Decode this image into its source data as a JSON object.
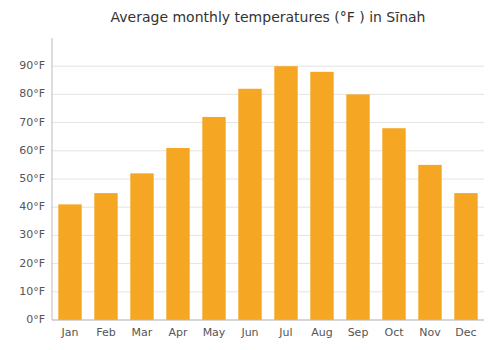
{
  "chart_data": {
    "type": "bar",
    "title": "Average monthly temperatures (°F ) in Sīnah",
    "categories": [
      "Jan",
      "Feb",
      "Mar",
      "Apr",
      "May",
      "Jun",
      "Jul",
      "Aug",
      "Sep",
      "Oct",
      "Nov",
      "Dec"
    ],
    "values": [
      41,
      45,
      52,
      61,
      72,
      82,
      90,
      88,
      80,
      68,
      55,
      45
    ],
    "color": "#F5A623",
    "ylim": [
      0,
      100
    ],
    "yticks": [
      {
        "value": 0,
        "label": "0°F"
      },
      {
        "value": 10,
        "label": "10°F"
      },
      {
        "value": 20,
        "label": "20°F"
      },
      {
        "value": 30,
        "label": "30°F"
      },
      {
        "value": 40,
        "label": "40°F"
      },
      {
        "value": 50,
        "label": "50°F"
      },
      {
        "value": 60,
        "label": "60°F"
      },
      {
        "value": 70,
        "label": "70°F"
      },
      {
        "value": 80,
        "label": "80°F"
      },
      {
        "value": 90,
        "label": "90°F"
      }
    ],
    "grid": true
  }
}
